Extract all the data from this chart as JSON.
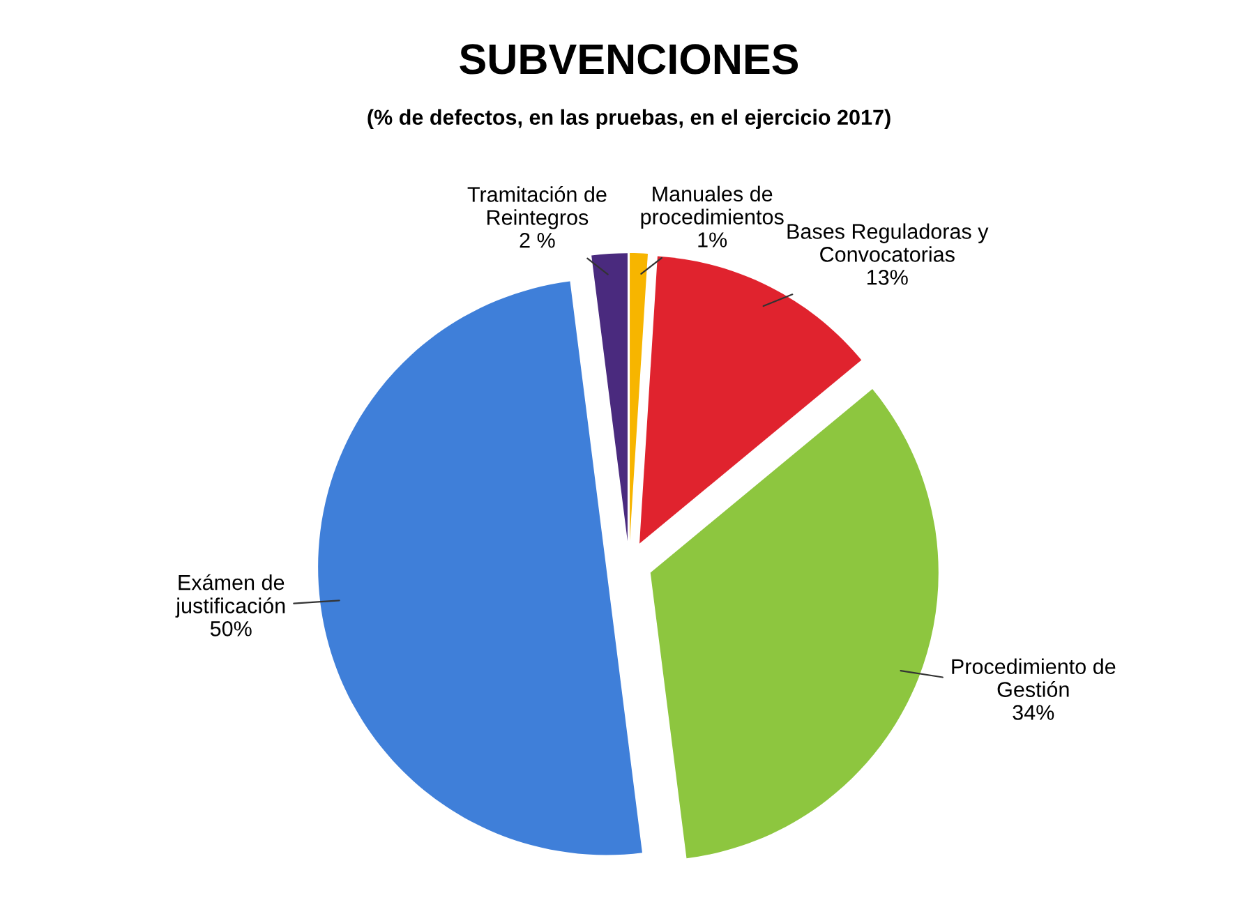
{
  "chart_data": {
    "type": "pie",
    "title": "SUBVENCIONES",
    "subtitle": "(% de defectos, en las pruebas, en el ejercicio 2017)",
    "categories": [
      "Manuales de\nprocedimientos",
      "Bases Reguladoras y\nConvocatorias",
      "Procedimiento de\nGestión",
      "Exámen de\njustificación",
      "Tramitación de\nReintegros"
    ],
    "values": [
      1,
      13,
      34,
      50,
      2
    ],
    "colors": [
      "#f7b500",
      "#e0232e",
      "#8dc63f",
      "#3f7fd9",
      "#4a2a7e"
    ],
    "value_labels": [
      "1%",
      "13%",
      "34%",
      "50%",
      "2 %"
    ],
    "legend": false
  }
}
